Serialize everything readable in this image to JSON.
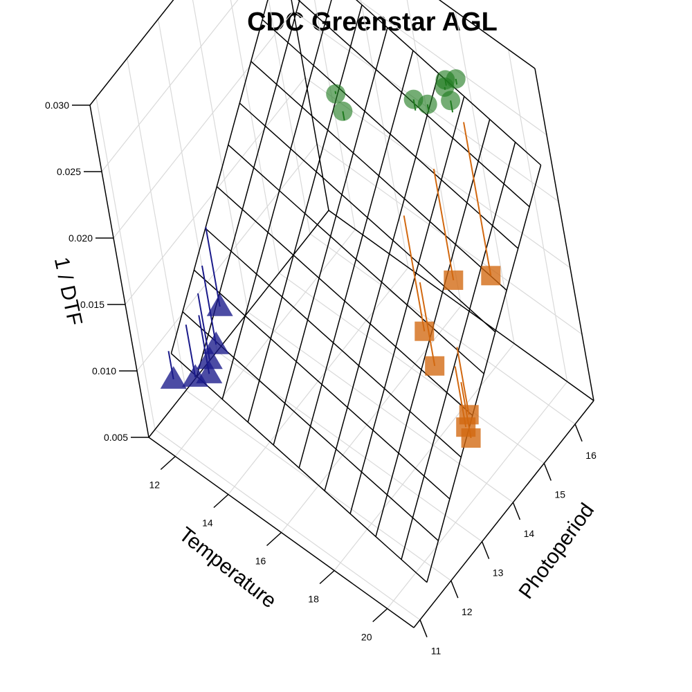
{
  "chart_data": {
    "type": "scatter",
    "subtype": "3d-scatter-with-fitted-plane",
    "title": "CDC Greenstar AGL",
    "axes": {
      "x": {
        "label": "Temperature",
        "ticks": [
          "12",
          "14",
          "16",
          "18",
          "20"
        ],
        "range": [
          11,
          21
        ]
      },
      "y": {
        "label": "Photoperiod",
        "ticks": [
          "11",
          "12",
          "13",
          "14",
          "15",
          "16"
        ],
        "range": [
          10.8,
          16.6
        ]
      },
      "z": {
        "label": "1 / DTF",
        "ticks": [
          "0.005",
          "0.010",
          "0.015",
          "0.020",
          "0.025",
          "0.030"
        ],
        "range": [
          0.005,
          0.03
        ]
      }
    },
    "grid": true,
    "surface": {
      "type": "plane",
      "mesh": "10x10"
    },
    "series": [
      {
        "marker": "triangle",
        "color": "#1a1a8a",
        "points": [
          {
            "x": 11.2,
            "y": 11.6,
            "z": 0.0073
          },
          {
            "x": 11.5,
            "y": 12.0,
            "z": 0.0067
          },
          {
            "x": 11.8,
            "y": 12.2,
            "z": 0.0068
          },
          {
            "x": 11.6,
            "y": 12.4,
            "z": 0.007
          },
          {
            "x": 11.5,
            "y": 12.7,
            "z": 0.0071
          },
          {
            "x": 11.3,
            "y": 13.1,
            "z": 0.0085
          }
        ]
      },
      {
        "marker": "square",
        "color": "#d2680f",
        "points": [
          {
            "x": 17.0,
            "y": 14.9,
            "z": 0.0095
          },
          {
            "x": 18.0,
            "y": 14.4,
            "z": 0.0098
          },
          {
            "x": 20.0,
            "y": 13.8,
            "z": 0.009
          },
          {
            "x": 19.6,
            "y": 14.1,
            "z": 0.0093
          },
          {
            "x": 19.7,
            "y": 13.9,
            "z": 0.0091
          },
          {
            "x": 17.5,
            "y": 15.6,
            "z": 0.012
          },
          {
            "x": 18.0,
            "y": 16.3,
            "z": 0.011
          }
        ]
      },
      {
        "marker": "circle",
        "color": "#1e7a1e",
        "points": [
          {
            "x": 14.0,
            "y": 15.5,
            "z": 0.0213
          },
          {
            "x": 14.5,
            "y": 15.3,
            "z": 0.0213
          },
          {
            "x": 16.5,
            "y": 16.0,
            "z": 0.023
          },
          {
            "x": 16.9,
            "y": 16.1,
            "z": 0.0229
          },
          {
            "x": 17.6,
            "y": 16.3,
            "z": 0.0236
          },
          {
            "x": 17.2,
            "y": 16.5,
            "z": 0.024
          },
          {
            "x": 17.5,
            "y": 16.6,
            "z": 0.0242
          },
          {
            "x": 17.2,
            "y": 16.45,
            "z": 0.0236
          }
        ]
      }
    ]
  }
}
